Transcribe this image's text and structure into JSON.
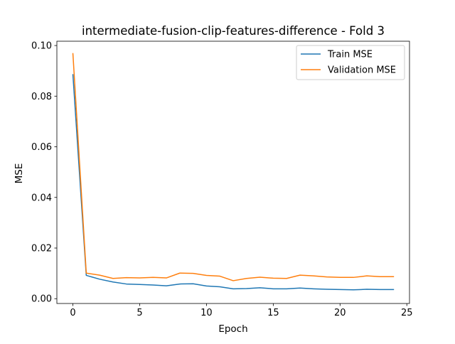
{
  "chart_data": {
    "type": "line",
    "title": "intermediate-fusion-clip-features-difference - Fold 3",
    "xlabel": "Epoch",
    "ylabel": "MSE",
    "xlim": [
      -1.2,
      25.2
    ],
    "ylim": [
      -0.0019,
      0.1017
    ],
    "xticks": [
      0,
      5,
      10,
      15,
      20,
      25
    ],
    "yticks": [
      0.0,
      0.02,
      0.04,
      0.06,
      0.08,
      0.1
    ],
    "xtick_labels": [
      "0",
      "5",
      "10",
      "15",
      "20",
      "25"
    ],
    "ytick_labels": [
      "0.00",
      "0.02",
      "0.04",
      "0.06",
      "0.08",
      "0.10"
    ],
    "grid": false,
    "legend_position": "upper right",
    "x": [
      0,
      1,
      2,
      3,
      4,
      5,
      6,
      7,
      8,
      9,
      10,
      11,
      12,
      13,
      14,
      15,
      16,
      17,
      18,
      19,
      20,
      21,
      22,
      23,
      24
    ],
    "series": [
      {
        "name": "Train MSE",
        "color": "#1f77b4",
        "values": [
          0.0885,
          0.0092,
          0.0077,
          0.0066,
          0.0058,
          0.0056,
          0.0054,
          0.0051,
          0.0058,
          0.0059,
          0.005,
          0.0047,
          0.0039,
          0.004,
          0.0043,
          0.0039,
          0.0039,
          0.0042,
          0.0039,
          0.0037,
          0.0036,
          0.0035,
          0.0037,
          0.0036,
          0.0036
        ]
      },
      {
        "name": "Validation MSE",
        "color": "#ff7f0e",
        "values": [
          0.0968,
          0.0101,
          0.0093,
          0.008,
          0.0083,
          0.0082,
          0.0084,
          0.0082,
          0.0101,
          0.01,
          0.0092,
          0.0089,
          0.0071,
          0.008,
          0.0085,
          0.0081,
          0.008,
          0.0093,
          0.009,
          0.0086,
          0.0084,
          0.0084,
          0.009,
          0.0087,
          0.0087
        ]
      }
    ]
  }
}
